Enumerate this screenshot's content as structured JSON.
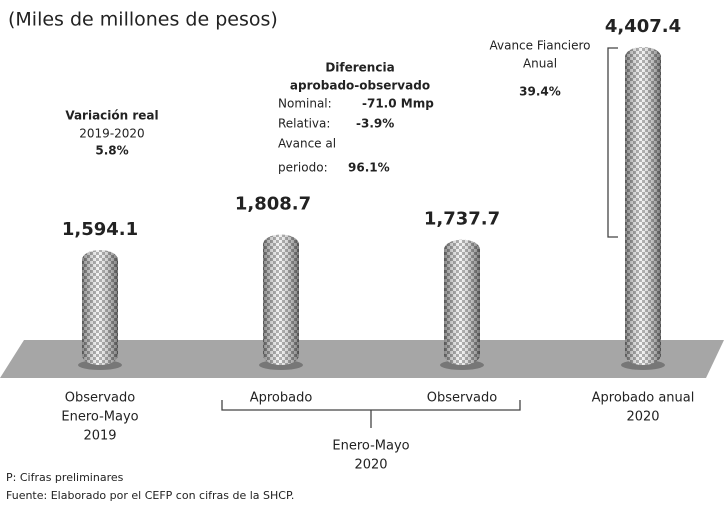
{
  "chart_data": {
    "type": "bar",
    "subtitle": "(Miles de millones de pesos)",
    "categories": [
      [
        "Observado",
        "Enero-Mayo",
        "2019"
      ],
      [
        "Aprobado"
      ],
      [
        "Observado"
      ],
      [
        "Aprobado anual",
        "2020"
      ]
    ],
    "values": [
      1594.1,
      1808.7,
      1737.7,
      4407.4
    ],
    "value_labels": [
      "1,594.1",
      "1,808.7",
      "1,737.7",
      "4,407.4"
    ],
    "group_label": [
      "Enero-Mayo",
      "2020"
    ],
    "annotations": {
      "variacion": {
        "title": "Variación real",
        "period": "2019-2020",
        "value": "5.8%"
      },
      "diferencia": {
        "title": [
          "Diferencia",
          "aprobado-observado"
        ],
        "nominal_label": "Nominal:",
        "nominal_value": "-71.0 Mmp",
        "relativa_label": "Relativa:",
        "relativa_value": "-3.9%",
        "avance_label": [
          "Avance al",
          "periodo:"
        ],
        "avance_value": "96.1%"
      },
      "avance_anual": {
        "title": [
          "Avance Fianciero",
          "Anual"
        ],
        "value": "39.4%"
      }
    },
    "notes": [
      "P: Cifras preliminares",
      "Fuente: Elaborado por el CEFP con cifras de la SHCP."
    ]
  }
}
